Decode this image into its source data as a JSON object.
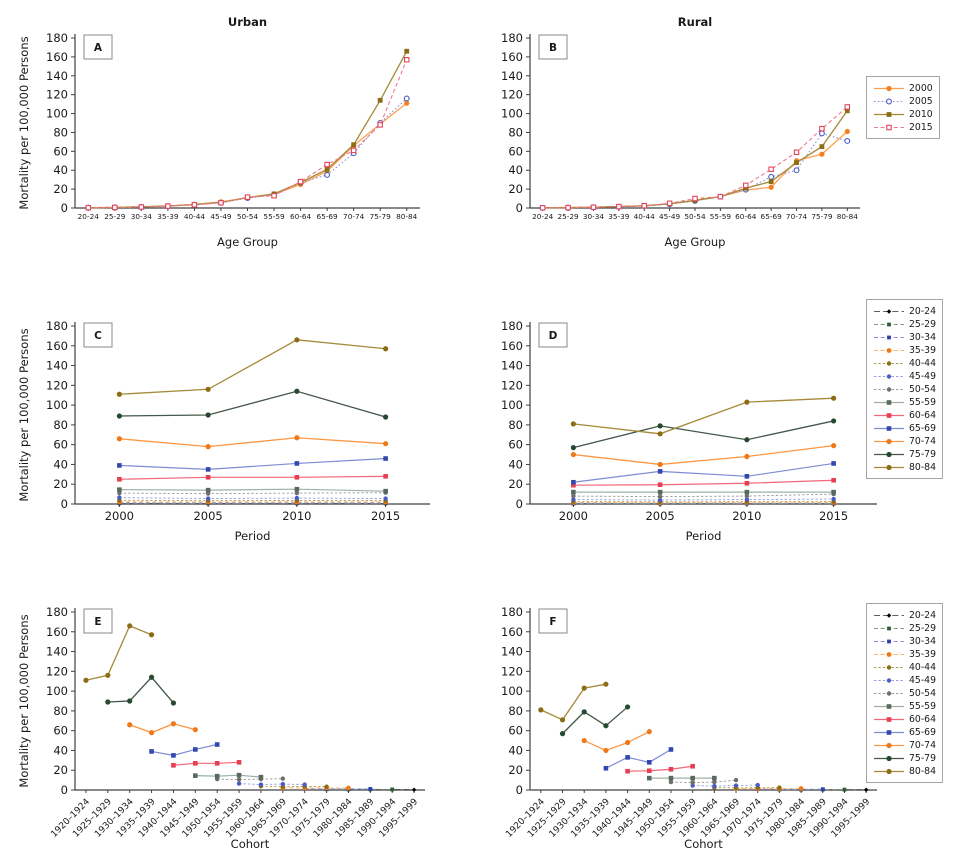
{
  "figure": {
    "background": "#ffffff",
    "ylabel": "Mortality per 100,000 Persons"
  },
  "axis": {
    "ylim": [
      0,
      180
    ],
    "ytick_step": 20,
    "color": "#404040"
  },
  "styles": {
    "y2000": {
      "label": "2000",
      "color": "#F57E1E",
      "line": "#FFA050",
      "dash": "solid",
      "marker": "circle",
      "msize": 2.6,
      "lw": 1.3
    },
    "y2005": {
      "label": "2005",
      "color": "#4A5BC6",
      "line": "#8893DB",
      "dash": "dotted",
      "marker": "circle-open",
      "msize": 2.4,
      "lw": 1.1
    },
    "y2010": {
      "label": "2010",
      "color": "#8A6D14",
      "line": "#A58A3A",
      "dash": "solid",
      "marker": "square",
      "msize": 4.8,
      "lw": 1.3
    },
    "y2015": {
      "label": "2015",
      "color": "#E4435C",
      "line": "#F2788C",
      "dash": "dashed",
      "marker": "square-open",
      "msize": 4.4,
      "lw": 1.1
    },
    "a2024": {
      "label": "20-24",
      "color": "#000000",
      "line": "#2a2a2a",
      "dash": "longdash",
      "marker": "diamond",
      "msize": 3.2,
      "lw": 0.8
    },
    "a2529": {
      "label": "25-29",
      "color": "#2F5E3A",
      "line": "#7E9B84",
      "dash": "dashed",
      "marker": "square",
      "msize": 3.8,
      "lw": 0.9
    },
    "a3034": {
      "label": "30-34",
      "color": "#3040B0",
      "line": "#8893DB",
      "dash": "dashed",
      "marker": "square",
      "msize": 3.8,
      "lw": 0.9
    },
    "a3539": {
      "label": "35-39",
      "color": "#F07818",
      "line": "#FFB067",
      "dash": "dashed",
      "marker": "circle",
      "msize": 2.4,
      "lw": 0.9
    },
    "a4044": {
      "label": "40-44",
      "color": "#8A6D14",
      "line": "#B59A4A",
      "dash": "finedash",
      "marker": "circle",
      "msize": 2.2,
      "lw": 0.9
    },
    "a4549": {
      "label": "45-49",
      "color": "#4A5BC6",
      "line": "#93A0DE",
      "dash": "finedash",
      "marker": "circle",
      "msize": 2.2,
      "lw": 0.9
    },
    "a5054": {
      "label": "50-54",
      "color": "#6E6E6E",
      "line": "#9A9A9A",
      "dash": "finedash",
      "marker": "circle",
      "msize": 2.2,
      "lw": 0.9
    },
    "a5559": {
      "label": "55-59",
      "color": "#566A5D",
      "line": "#9FB0A3",
      "dash": "solid",
      "marker": "square",
      "msize": 4.6,
      "lw": 1.2
    },
    "a6064": {
      "label": "60-64",
      "color": "#E63E52",
      "line": "#F2677A",
      "dash": "solid",
      "marker": "square",
      "msize": 4.6,
      "lw": 1.2
    },
    "a6569": {
      "label": "65-69",
      "color": "#3347B0",
      "line": "#7C8BD4",
      "dash": "solid",
      "marker": "square",
      "msize": 4.6,
      "lw": 1.2
    },
    "a7074": {
      "label": "70-74",
      "color": "#F07818",
      "line": "#FF9742",
      "dash": "solid",
      "marker": "circle",
      "msize": 2.6,
      "lw": 1.3
    },
    "a7579": {
      "label": "75-79",
      "color": "#26492F",
      "line": "#44574A",
      "dash": "solid",
      "marker": "circle",
      "msize": 2.6,
      "lw": 1.3
    },
    "a8084": {
      "label": "80-84",
      "color": "#8A6D14",
      "line": "#A58A3A",
      "dash": "solid",
      "marker": "circle",
      "msize": 2.6,
      "lw": 1.3
    }
  },
  "chart_data": [
    {
      "type": "line",
      "id": "A",
      "title": "Urban",
      "xlabel": "Age Group",
      "has_ylabel": true,
      "xtick_rotate": false,
      "categories": [
        "20-24",
        "25-29",
        "30-34",
        "35-39",
        "40-44",
        "45-49",
        "50-54",
        "55-59",
        "60-64",
        "65-69",
        "70-74",
        "75-79",
        "80-84"
      ],
      "series": [
        {
          "style": "y2000",
          "values": [
            0.3,
            0.7,
            1.3,
            2.2,
            3.8,
            6.5,
            11,
            14.5,
            25,
            39,
            66,
            89,
            111
          ]
        },
        {
          "style": "y2005",
          "values": [
            0.3,
            0.6,
            1.1,
            2.0,
            3.3,
            5.5,
            10.5,
            14,
            27,
            35,
            58,
            90,
            116
          ]
        },
        {
          "style": "y2010",
          "values": [
            0.3,
            0.7,
            1.2,
            2.1,
            3.6,
            6.0,
            11,
            15,
            27,
            41,
            67,
            114,
            166
          ]
        },
        {
          "style": "y2015",
          "values": [
            0.3,
            0.6,
            1.1,
            2.0,
            3.4,
            5.5,
            11.5,
            13,
            28,
            46,
            61,
            88,
            157
          ]
        }
      ]
    },
    {
      "type": "line",
      "id": "B",
      "title": "Rural",
      "xlabel": "Age Group",
      "has_ylabel": false,
      "xtick_rotate": false,
      "categories": [
        "20-24",
        "25-29",
        "30-34",
        "35-39",
        "40-44",
        "45-49",
        "50-54",
        "55-59",
        "60-64",
        "65-69",
        "70-74",
        "75-79",
        "80-84"
      ],
      "series": [
        {
          "style": "y2000",
          "values": [
            0.2,
            0.5,
            0.9,
            1.6,
            2.4,
            4.5,
            8,
            12,
            19,
            22,
            50,
            57,
            81
          ]
        },
        {
          "style": "y2005",
          "values": [
            0.2,
            0.4,
            0.8,
            1.4,
            2.2,
            4.0,
            7.5,
            12,
            19.5,
            33,
            40,
            79,
            71
          ]
        },
        {
          "style": "y2010",
          "values": [
            0.2,
            0.5,
            0.8,
            1.5,
            2.3,
            4.5,
            8,
            12,
            21,
            28,
            48,
            65,
            103
          ]
        },
        {
          "style": "y2015",
          "values": [
            0.2,
            0.4,
            0.8,
            1.5,
            2.4,
            5.0,
            10,
            12,
            24,
            41,
            59,
            84,
            107
          ]
        }
      ]
    },
    {
      "type": "line",
      "id": "C",
      "title": "",
      "xlabel": "Period",
      "has_ylabel": true,
      "xtick_rotate": false,
      "categories": [
        "2000",
        "2005",
        "2010",
        "2015"
      ],
      "series": [
        {
          "style": "a2024",
          "values": [
            0.3,
            0.3,
            0.3,
            0.3
          ]
        },
        {
          "style": "a2529",
          "values": [
            0.7,
            0.6,
            0.7,
            0.6
          ]
        },
        {
          "style": "a3034",
          "values": [
            1.3,
            1.1,
            1.2,
            1.1
          ]
        },
        {
          "style": "a3539",
          "values": [
            2.2,
            2.0,
            2.1,
            2.0
          ]
        },
        {
          "style": "a4044",
          "values": [
            3.8,
            3.3,
            3.6,
            3.4
          ]
        },
        {
          "style": "a4549",
          "values": [
            6.5,
            5.5,
            6.0,
            5.5
          ]
        },
        {
          "style": "a5054",
          "values": [
            11,
            10.5,
            11,
            11.5
          ]
        },
        {
          "style": "a5559",
          "values": [
            14.5,
            14,
            15,
            13
          ]
        },
        {
          "style": "a6064",
          "values": [
            25,
            27,
            27,
            28
          ]
        },
        {
          "style": "a6569",
          "values": [
            39,
            35,
            41,
            46
          ]
        },
        {
          "style": "a7074",
          "values": [
            66,
            58,
            67,
            61
          ]
        },
        {
          "style": "a7579",
          "values": [
            89,
            90,
            114,
            88
          ]
        },
        {
          "style": "a8084",
          "values": [
            111,
            116,
            166,
            157
          ]
        }
      ]
    },
    {
      "type": "line",
      "id": "D",
      "title": "",
      "xlabel": "Period",
      "has_ylabel": false,
      "xtick_rotate": false,
      "categories": [
        "2000",
        "2005",
        "2010",
        "2015"
      ],
      "series": [
        {
          "style": "a2024",
          "values": [
            0.2,
            0.2,
            0.2,
            0.2
          ]
        },
        {
          "style": "a2529",
          "values": [
            0.5,
            0.4,
            0.5,
            0.4
          ]
        },
        {
          "style": "a3034",
          "values": [
            0.9,
            0.8,
            0.8,
            0.8
          ]
        },
        {
          "style": "a3539",
          "values": [
            1.6,
            1.4,
            1.5,
            1.5
          ]
        },
        {
          "style": "a4044",
          "values": [
            2.4,
            2.2,
            2.3,
            2.4
          ]
        },
        {
          "style": "a4549",
          "values": [
            4.5,
            4.0,
            4.5,
            5.0
          ]
        },
        {
          "style": "a5054",
          "values": [
            8,
            7.5,
            8,
            10
          ]
        },
        {
          "style": "a5559",
          "values": [
            12,
            12,
            12,
            12
          ]
        },
        {
          "style": "a6064",
          "values": [
            19,
            19.5,
            21,
            24
          ]
        },
        {
          "style": "a6569",
          "values": [
            22,
            33,
            28,
            41
          ]
        },
        {
          "style": "a7074",
          "values": [
            50,
            40,
            48,
            59
          ]
        },
        {
          "style": "a7579",
          "values": [
            57,
            79,
            65,
            84
          ]
        },
        {
          "style": "a8084",
          "values": [
            81,
            71,
            103,
            107
          ]
        }
      ]
    },
    {
      "type": "line",
      "id": "E",
      "title": "",
      "xlabel": "Cohort",
      "has_ylabel": true,
      "xtick_rotate": true,
      "categories": [
        "1920–1924",
        "1925–1929",
        "1930–1934",
        "1935–1939",
        "1940–1944",
        "1945–1949",
        "1950–1954",
        "1955–1959",
        "1960–1964",
        "1965–1969",
        "1970–1974",
        "1975–1979",
        "1980–1984",
        "1985–1989",
        "1990–1994",
        "1995–1999"
      ],
      "series": [
        {
          "style": "a2024",
          "start": 12,
          "values": [
            0.3,
            0.3,
            0.3,
            0.3
          ]
        },
        {
          "style": "a2529",
          "start": 11,
          "values": [
            0.7,
            0.6,
            0.7,
            0.6
          ]
        },
        {
          "style": "a3034",
          "start": 10,
          "values": [
            1.3,
            1.1,
            1.2,
            1.1
          ]
        },
        {
          "style": "a3539",
          "start": 9,
          "values": [
            2.2,
            2.0,
            2.1,
            2.0
          ]
        },
        {
          "style": "a4044",
          "start": 8,
          "values": [
            3.8,
            3.3,
            3.6,
            3.4
          ]
        },
        {
          "style": "a4549",
          "start": 7,
          "values": [
            6.5,
            5.5,
            6.0,
            5.5
          ]
        },
        {
          "style": "a5054",
          "start": 6,
          "values": [
            11,
            10.5,
            11,
            11.5
          ]
        },
        {
          "style": "a5559",
          "start": 5,
          "values": [
            14.5,
            14,
            15,
            13
          ]
        },
        {
          "style": "a6064",
          "start": 4,
          "values": [
            25,
            27,
            27,
            28
          ]
        },
        {
          "style": "a6569",
          "start": 3,
          "values": [
            39,
            35,
            41,
            46
          ]
        },
        {
          "style": "a7074",
          "start": 2,
          "values": [
            66,
            58,
            67,
            61
          ]
        },
        {
          "style": "a7579",
          "start": 1,
          "values": [
            89,
            90,
            114,
            88
          ]
        },
        {
          "style": "a8084",
          "start": 0,
          "values": [
            111,
            116,
            166,
            157
          ]
        }
      ]
    },
    {
      "type": "line",
      "id": "F",
      "title": "",
      "xlabel": "Cohort",
      "has_ylabel": false,
      "xtick_rotate": true,
      "categories": [
        "1920–1924",
        "1925–1929",
        "1930–1934",
        "1935–1939",
        "1940–1944",
        "1945–1949",
        "1950–1954",
        "1955–1959",
        "1960–1964",
        "1965–1969",
        "1970–1974",
        "1975–1979",
        "1980–1984",
        "1985–1989",
        "1990–1994",
        "1995–1999"
      ],
      "series": [
        {
          "style": "a2024",
          "start": 12,
          "values": [
            0.2,
            0.2,
            0.2,
            0.2
          ]
        },
        {
          "style": "a2529",
          "start": 11,
          "values": [
            0.5,
            0.4,
            0.5,
            0.4
          ]
        },
        {
          "style": "a3034",
          "start": 10,
          "values": [
            0.9,
            0.8,
            0.8,
            0.8
          ]
        },
        {
          "style": "a3539",
          "start": 9,
          "values": [
            1.6,
            1.4,
            1.5,
            1.5
          ]
        },
        {
          "style": "a4044",
          "start": 8,
          "values": [
            2.4,
            2.2,
            2.3,
            2.4
          ]
        },
        {
          "style": "a4549",
          "start": 7,
          "values": [
            4.5,
            4.0,
            4.5,
            5.0
          ]
        },
        {
          "style": "a5054",
          "start": 6,
          "values": [
            8,
            7.5,
            8,
            10
          ]
        },
        {
          "style": "a5559",
          "start": 5,
          "values": [
            12,
            12,
            12,
            12
          ]
        },
        {
          "style": "a6064",
          "start": 4,
          "values": [
            19,
            19.5,
            21,
            24
          ]
        },
        {
          "style": "a6569",
          "start": 3,
          "values": [
            22,
            33,
            28,
            41
          ]
        },
        {
          "style": "a7074",
          "start": 2,
          "values": [
            50,
            40,
            48,
            59
          ]
        },
        {
          "style": "a7579",
          "start": 1,
          "values": [
            57,
            79,
            65,
            84
          ]
        },
        {
          "style": "a8084",
          "start": 0,
          "values": [
            81,
            71,
            103,
            107
          ]
        }
      ]
    }
  ],
  "legends": [
    {
      "id": "legend-years",
      "items": [
        "y2000",
        "y2005",
        "y2010",
        "y2015"
      ]
    },
    {
      "id": "legend-age-groups-period",
      "items": [
        "a2024",
        "a2529",
        "a3034",
        "a3539",
        "a4044",
        "a4549",
        "a5054",
        "a5559",
        "a6064",
        "a6569",
        "a7074",
        "a7579",
        "a8084"
      ]
    },
    {
      "id": "legend-age-groups-cohort",
      "items": [
        "a2024",
        "a2529",
        "a3034",
        "a3539",
        "a4044",
        "a4549",
        "a5054",
        "a5559",
        "a6064",
        "a6569",
        "a7074",
        "a7579",
        "a8084"
      ]
    }
  ]
}
